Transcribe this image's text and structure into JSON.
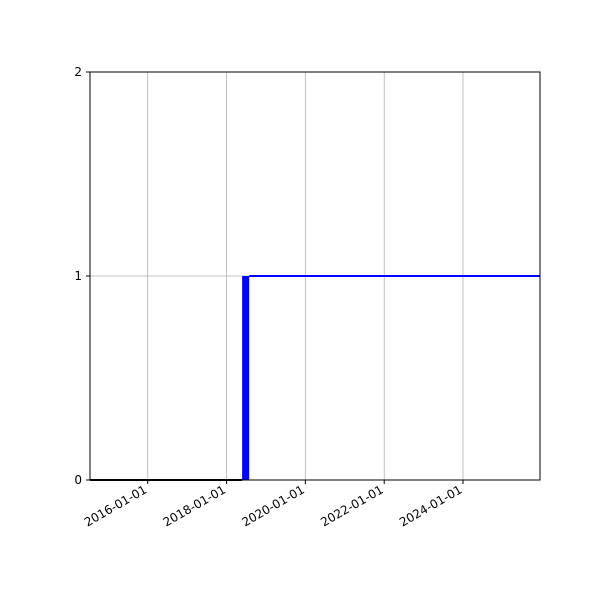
{
  "chart_data": {
    "type": "line",
    "title": "",
    "xlabel": "",
    "ylabel": "",
    "xlim": [
      "2014-07-15",
      "2025-12-15"
    ],
    "ylim": [
      0,
      2
    ],
    "grid": true,
    "xticks": [
      "2016-01-01",
      "2018-01-01",
      "2020-01-01",
      "2022-01-01",
      "2024-01-01"
    ],
    "yticks": [
      0,
      1,
      2
    ],
    "series": [
      {
        "color": "#000000",
        "x": [
          "2014-07-15",
          "2018-05-25"
        ],
        "y": [
          0,
          0
        ]
      },
      {
        "color": "#0000ff",
        "type": "fill",
        "x": [
          "2018-05-25",
          "2018-07-30"
        ],
        "y": [
          1,
          1
        ]
      },
      {
        "color": "#0000ff",
        "x": [
          "2018-07-30",
          "2025-12-15"
        ],
        "y": [
          1,
          1
        ]
      }
    ]
  }
}
